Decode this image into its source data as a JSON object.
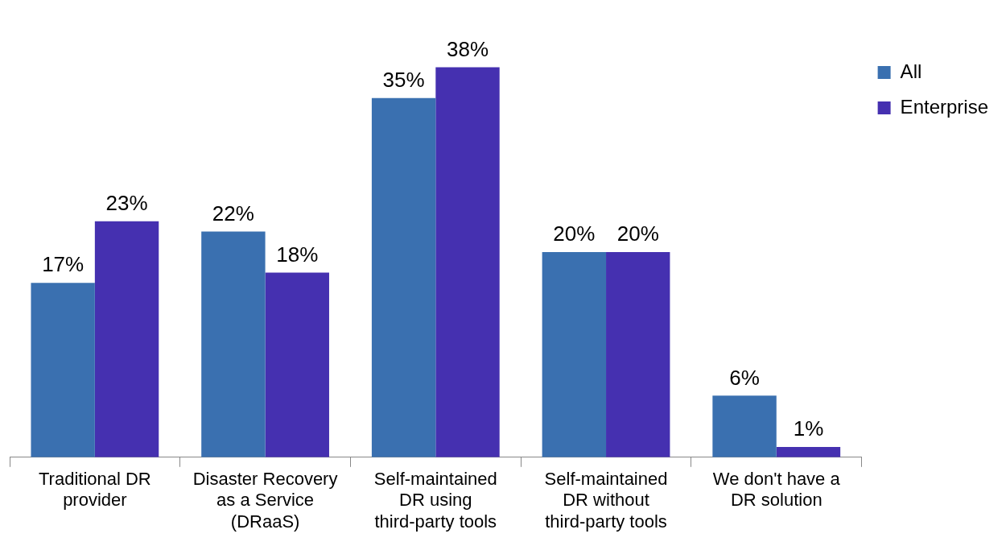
{
  "chart_data": {
    "type": "bar",
    "categories": [
      "Traditional DR provider",
      "Disaster Recovery as a Service (DRaaS)",
      "Self-maintained DR using third-party tools",
      "Self-maintained DR without third-party tools",
      "We don't have a DR solution"
    ],
    "series": [
      {
        "name": "All",
        "color": "#3a70b0",
        "values": [
          17,
          22,
          35,
          20,
          6
        ],
        "value_labels": [
          "17%",
          "22%",
          "35%",
          "20%",
          "6%"
        ]
      },
      {
        "name": "Enterprise",
        "color": "#4530b0",
        "values": [
          23,
          18,
          38,
          20,
          1
        ],
        "value_labels": [
          "23%",
          "18%",
          "38%",
          "20%",
          "1%"
        ]
      }
    ],
    "legend": "top right",
    "grid": false
  }
}
